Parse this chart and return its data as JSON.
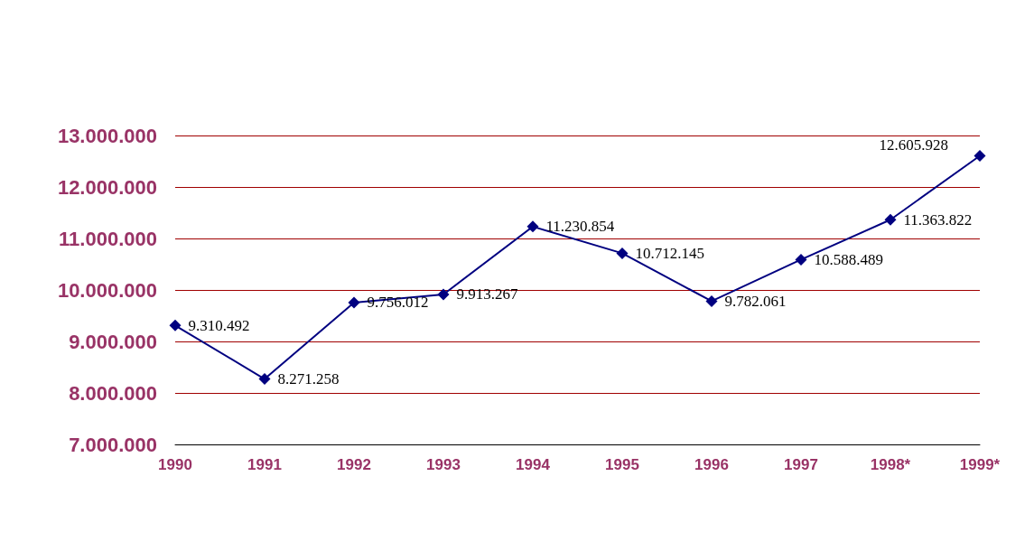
{
  "chart_data": {
    "type": "line",
    "categories": [
      "1990",
      "1991",
      "1992",
      "1993",
      "1994",
      "1995",
      "1996",
      "1997",
      "1998*",
      "1999*"
    ],
    "series": [
      {
        "color": "#000080",
        "values": [
          9310492,
          8271258,
          9756012,
          9913267,
          11230854,
          10712145,
          9782061,
          10588489,
          11363822,
          12605928
        ],
        "value_labels": [
          "9.310.492",
          "8.271.258",
          "9.756.012",
          "9.913.267",
          "11.230.854",
          "10.712.145",
          "9.782.061",
          "10.588.489",
          "11.363.822",
          "12.605.928"
        ]
      }
    ],
    "ylim": [
      7000000,
      13000000
    ],
    "yticks": [
      {
        "value": 7000000,
        "label": "7.000.000"
      },
      {
        "value": 8000000,
        "label": "8.000.000"
      },
      {
        "value": 9000000,
        "label": "9.000.000"
      },
      {
        "value": 10000000,
        "label": "10.000.000"
      },
      {
        "value": 11000000,
        "label": "11.000.000"
      },
      {
        "value": 12000000,
        "label": "12.000.000"
      },
      {
        "value": 13000000,
        "label": "13.000.000"
      }
    ],
    "grid": "y",
    "marker": "diamond",
    "line_style": "solid"
  }
}
